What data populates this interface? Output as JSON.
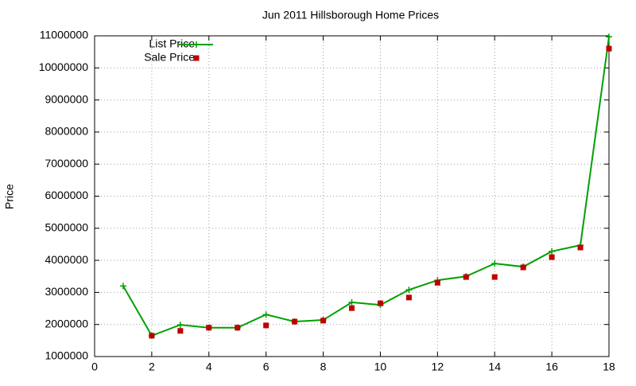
{
  "chart_data": {
    "type": "line",
    "title": "Jun 2011 Hillsborough Home Prices",
    "y_label": "Price",
    "x": [
      1,
      2,
      3,
      4,
      5,
      6,
      7,
      8,
      9,
      10,
      11,
      12,
      13,
      14,
      15,
      16,
      17,
      18
    ],
    "series": [
      {
        "name": "List Price",
        "color": "#00a000",
        "mode": "lines+markers",
        "values": [
          3200000,
          1650000,
          1990000,
          1900000,
          1900000,
          2310000,
          2090000,
          2140000,
          2690000,
          2610000,
          3080000,
          3380000,
          3500000,
          3900000,
          3800000,
          4280000,
          4470000,
          10970000
        ]
      },
      {
        "name": "Sale Price",
        "color": "#c00000",
        "mode": "markers",
        "values": [
          null,
          1650000,
          1800000,
          1900000,
          1900000,
          1970000,
          2090000,
          2120000,
          2510000,
          2660000,
          2840000,
          3300000,
          3480000,
          3480000,
          3780000,
          4100000,
          4400000,
          10600000
        ]
      }
    ],
    "xlim": [
      0,
      18
    ],
    "xticks": [
      0,
      2,
      4,
      6,
      8,
      10,
      12,
      14,
      16,
      18
    ],
    "ylim": [
      1000000,
      11000000
    ],
    "yticks": [
      1000000,
      2000000,
      3000000,
      4000000,
      5000000,
      6000000,
      7000000,
      8000000,
      9000000,
      10000000,
      11000000
    ],
    "grid": true,
    "legend": "top-left"
  }
}
